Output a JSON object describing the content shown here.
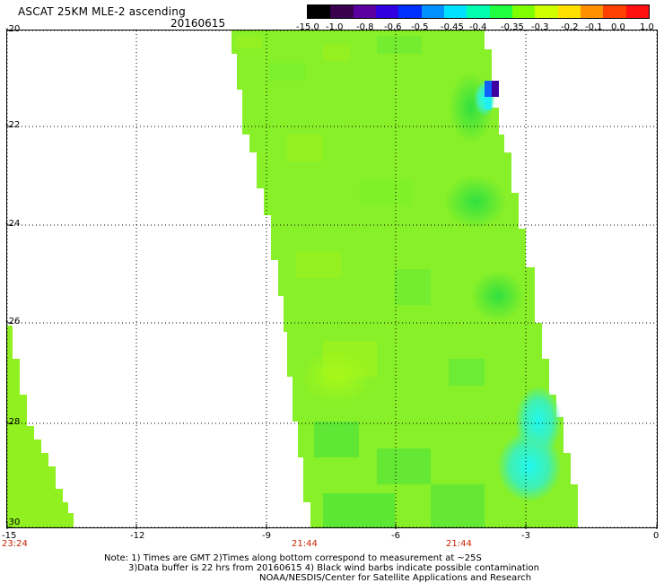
{
  "header": {
    "title": "ASCAT 25KM MLE-2 ascending",
    "date": "20160615"
  },
  "colorbar": {
    "labels": [
      "-15.0",
      "-1.0",
      "-0.8",
      "-0.6",
      "-0.5",
      "-0.45",
      "-0.4",
      "-0.35",
      "-0.3",
      "-0.2",
      "-0.1",
      "0.0",
      "1.0"
    ],
    "colors": [
      "#000000",
      "#3a0050",
      "#5a00a0",
      "#3000e0",
      "#0030ff",
      "#0090ff",
      "#00e0ff",
      "#00ffb0",
      "#20ff40",
      "#80ff00",
      "#d0ff00",
      "#ffe000",
      "#ff9000",
      "#ff4000",
      "#ff1010"
    ]
  },
  "axes": {
    "y_ticks": [
      "-20",
      "-22",
      "-24",
      "-26",
      "-28",
      "-30"
    ],
    "x_ticks": [
      "-15",
      "-12",
      "-9",
      "-6",
      "-3",
      "0"
    ],
    "times": [
      "23:24",
      "21:44",
      "21:44"
    ]
  },
  "swaths": {
    "left_fill": "#90f020",
    "main_fill": "#88f028",
    "accent_green": "#40e040",
    "accent_cyan": "#20f0f0",
    "accent_blue": "#1060ff",
    "accent_purple": "#4000a0"
  },
  "footer": {
    "line1": "Note: 1) Times are GMT 2)Times along bottom correspond to measurement at ~25S",
    "line2": "3)Data buffer is 22 hrs from 20160615 4) Black wind barbs indicate possible contamination",
    "line3": "NOAA/NESDIS/Center for Satellite Applications and Research"
  }
}
